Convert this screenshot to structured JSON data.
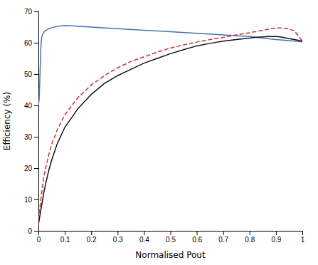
{
  "chart_data": {
    "type": "line",
    "xlabel": "Normalised Pout",
    "ylabel": "Efficiency (%)",
    "xlim": [
      0,
      1
    ],
    "ylim": [
      0,
      70
    ],
    "xticks": [
      0,
      0.1,
      0.2,
      0.3,
      0.4,
      0.5,
      0.6,
      0.7,
      0.8,
      0.9,
      1
    ],
    "yticks": [
      0,
      10,
      20,
      30,
      40,
      50,
      60,
      70
    ],
    "grid": false,
    "series": [
      {
        "color": "#4472b8",
        "line_style": "solid",
        "x": [
          0.0,
          0.003,
          0.006,
          0.009,
          0.012,
          0.015,
          0.018,
          0.022,
          0.03,
          0.04,
          0.05,
          0.07,
          0.1,
          0.15,
          0.2,
          0.3,
          0.4,
          0.5,
          0.6,
          0.7,
          0.8,
          0.85,
          0.9,
          0.95,
          1.0
        ],
        "values": [
          40.0,
          42.0,
          50.0,
          58.0,
          61.5,
          62.5,
          63.0,
          63.5,
          64.0,
          64.5,
          64.8,
          65.2,
          65.5,
          65.3,
          65.0,
          64.5,
          64.0,
          63.5,
          63.0,
          62.5,
          62.0,
          61.5,
          61.0,
          60.7,
          60.3
        ]
      },
      {
        "color": "#cc3333",
        "line_style": "dashed",
        "x": [
          0.0,
          0.005,
          0.01,
          0.015,
          0.02,
          0.03,
          0.04,
          0.05,
          0.07,
          0.1,
          0.15,
          0.2,
          0.25,
          0.3,
          0.35,
          0.4,
          0.45,
          0.5,
          0.55,
          0.6,
          0.65,
          0.7,
          0.75,
          0.8,
          0.82,
          0.85,
          0.87,
          0.9,
          0.92,
          0.95,
          0.97,
          1.0
        ],
        "values": [
          3.5,
          7.0,
          10.5,
          14.0,
          17.0,
          21.0,
          24.5,
          27.5,
          32.0,
          37.0,
          42.5,
          46.5,
          49.5,
          52.0,
          54.0,
          55.5,
          57.0,
          58.3,
          59.3,
          60.2,
          61.0,
          61.7,
          62.5,
          63.2,
          63.5,
          64.0,
          64.3,
          64.7,
          64.7,
          64.4,
          63.8,
          60.5
        ]
      },
      {
        "color": "#111111",
        "line_style": "solid",
        "x": [
          0.0,
          0.005,
          0.01,
          0.015,
          0.02,
          0.03,
          0.04,
          0.05,
          0.07,
          0.1,
          0.15,
          0.2,
          0.25,
          0.3,
          0.35,
          0.4,
          0.45,
          0.5,
          0.55,
          0.6,
          0.65,
          0.7,
          0.75,
          0.8,
          0.82,
          0.85,
          0.87,
          0.9,
          0.92,
          0.95,
          0.97,
          1.0
        ],
        "values": [
          2.0,
          4.5,
          7.0,
          9.5,
          12.0,
          16.0,
          19.5,
          22.5,
          27.5,
          33.0,
          39.0,
          43.5,
          47.0,
          49.5,
          51.5,
          53.5,
          55.0,
          56.5,
          57.8,
          59.0,
          59.8,
          60.5,
          61.0,
          61.5,
          61.7,
          61.9,
          62.0,
          62.0,
          61.8,
          61.3,
          61.0,
          60.5
        ]
      }
    ]
  }
}
